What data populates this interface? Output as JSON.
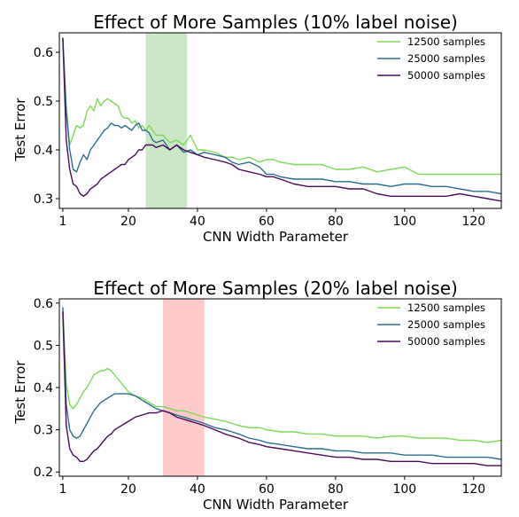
{
  "colors": {
    "s12500": "#7ed957",
    "s25000": "#2b6f8e",
    "s50000": "#4a0d5c",
    "band1": "#a9d9a0",
    "band2": "#ffb3b3"
  },
  "chart_data": [
    {
      "type": "line",
      "title": "Effect of More Samples (10% label noise)",
      "xlabel": "CNN Width Parameter",
      "ylabel": "Test Error",
      "xlim": [
        0,
        128
      ],
      "ylim": [
        0.28,
        0.64
      ],
      "xticks": [
        {
          "v": 1,
          "label": "1"
        },
        {
          "v": 20,
          "label": "20"
        },
        {
          "v": 40,
          "label": "40"
        },
        {
          "v": 60,
          "label": "60"
        },
        {
          "v": 80,
          "label": "80"
        },
        {
          "v": 100,
          "label": "100"
        },
        {
          "v": 120,
          "label": "120"
        }
      ],
      "yticks": [
        {
          "v": 0.3,
          "label": "0.3"
        },
        {
          "v": 0.4,
          "label": "0.4"
        },
        {
          "v": 0.5,
          "label": "0.5"
        },
        {
          "v": 0.6,
          "label": "0.6"
        }
      ],
      "shaded_region": [
        25,
        37
      ],
      "legend_position": "top-right",
      "series": [
        {
          "name": "12500 samples",
          "color_key": "s12500",
          "x": [
            1,
            2,
            3,
            4,
            5,
            6,
            7,
            8,
            9,
            10,
            11,
            12,
            13,
            14,
            15,
            16,
            17,
            18,
            19,
            20,
            21,
            22,
            23,
            24,
            25,
            26,
            27,
            28,
            30,
            32,
            34,
            36,
            38,
            40,
            42,
            45,
            48,
            50,
            52,
            55,
            58,
            60,
            62,
            64,
            68,
            72,
            76,
            80,
            84,
            88,
            92,
            96,
            100,
            104,
            108,
            112,
            116,
            120,
            124,
            128
          ],
          "y": [
            0.63,
            0.49,
            0.41,
            0.43,
            0.45,
            0.445,
            0.45,
            0.48,
            0.49,
            0.48,
            0.505,
            0.49,
            0.5,
            0.505,
            0.5,
            0.495,
            0.49,
            0.47,
            0.465,
            0.465,
            0.455,
            0.46,
            0.445,
            0.45,
            0.44,
            0.45,
            0.44,
            0.43,
            0.43,
            0.415,
            0.42,
            0.41,
            0.43,
            0.4,
            0.4,
            0.395,
            0.385,
            0.385,
            0.38,
            0.385,
            0.375,
            0.38,
            0.38,
            0.375,
            0.37,
            0.37,
            0.37,
            0.36,
            0.36,
            0.365,
            0.355,
            0.36,
            0.365,
            0.35,
            0.35,
            0.35,
            0.35,
            0.35,
            0.35,
            0.35
          ]
        },
        {
          "name": "25000 samples",
          "color_key": "s25000",
          "x": [
            1,
            2,
            3,
            4,
            5,
            6,
            7,
            8,
            9,
            10,
            11,
            12,
            13,
            14,
            15,
            16,
            17,
            18,
            19,
            20,
            21,
            22,
            23,
            24,
            25,
            26,
            27,
            28,
            30,
            32,
            34,
            36,
            38,
            40,
            42,
            45,
            48,
            50,
            52,
            55,
            58,
            60,
            62,
            64,
            68,
            72,
            76,
            80,
            84,
            88,
            92,
            96,
            100,
            104,
            108,
            112,
            116,
            120,
            124,
            128
          ],
          "y": [
            0.63,
            0.48,
            0.4,
            0.36,
            0.355,
            0.375,
            0.39,
            0.38,
            0.4,
            0.41,
            0.42,
            0.43,
            0.44,
            0.445,
            0.455,
            0.45,
            0.45,
            0.445,
            0.45,
            0.445,
            0.44,
            0.45,
            0.455,
            0.44,
            0.44,
            0.435,
            0.42,
            0.415,
            0.42,
            0.4,
            0.41,
            0.395,
            0.4,
            0.39,
            0.395,
            0.39,
            0.385,
            0.375,
            0.37,
            0.375,
            0.365,
            0.35,
            0.35,
            0.345,
            0.34,
            0.34,
            0.34,
            0.335,
            0.335,
            0.33,
            0.33,
            0.325,
            0.33,
            0.33,
            0.325,
            0.325,
            0.32,
            0.315,
            0.315,
            0.31
          ]
        },
        {
          "name": "50000 samples",
          "color_key": "s50000",
          "x": [
            1,
            2,
            3,
            4,
            5,
            6,
            7,
            8,
            9,
            10,
            11,
            12,
            13,
            14,
            15,
            16,
            17,
            18,
            19,
            20,
            21,
            22,
            23,
            24,
            25,
            26,
            27,
            28,
            30,
            32,
            34,
            36,
            38,
            40,
            42,
            45,
            48,
            50,
            52,
            55,
            58,
            60,
            62,
            64,
            68,
            72,
            76,
            80,
            84,
            88,
            92,
            96,
            100,
            104,
            108,
            112,
            116,
            120,
            124,
            128
          ],
          "y": [
            0.63,
            0.42,
            0.36,
            0.33,
            0.325,
            0.31,
            0.305,
            0.31,
            0.32,
            0.325,
            0.33,
            0.34,
            0.345,
            0.35,
            0.355,
            0.36,
            0.365,
            0.37,
            0.37,
            0.38,
            0.385,
            0.39,
            0.4,
            0.4,
            0.41,
            0.41,
            0.41,
            0.405,
            0.41,
            0.4,
            0.41,
            0.4,
            0.395,
            0.39,
            0.385,
            0.38,
            0.375,
            0.37,
            0.36,
            0.355,
            0.35,
            0.345,
            0.345,
            0.34,
            0.33,
            0.325,
            0.325,
            0.325,
            0.32,
            0.32,
            0.31,
            0.305,
            0.305,
            0.305,
            0.305,
            0.305,
            0.31,
            0.305,
            0.3,
            0.295
          ]
        }
      ]
    },
    {
      "type": "line",
      "title": "Effect of More Samples (20% label noise)",
      "xlabel": "CNN Width Parameter",
      "ylabel": "Test Error",
      "xlim": [
        0,
        128
      ],
      "ylim": [
        0.19,
        0.61
      ],
      "xticks": [
        {
          "v": 1,
          "label": "1"
        },
        {
          "v": 20,
          "label": "20"
        },
        {
          "v": 40,
          "label": "40"
        },
        {
          "v": 60,
          "label": "60"
        },
        {
          "v": 80,
          "label": "80"
        },
        {
          "v": 100,
          "label": "100"
        },
        {
          "v": 120,
          "label": "120"
        }
      ],
      "yticks": [
        {
          "v": 0.2,
          "label": "0.2"
        },
        {
          "v": 0.3,
          "label": "0.3"
        },
        {
          "v": 0.4,
          "label": "0.4"
        },
        {
          "v": 0.5,
          "label": "0.5"
        },
        {
          "v": 0.6,
          "label": "0.6"
        }
      ],
      "shaded_region": [
        30,
        42
      ],
      "legend_position": "top-right",
      "series": [
        {
          "name": "12500 samples",
          "color_key": "s12500",
          "x": [
            1,
            2,
            3,
            4,
            5,
            6,
            7,
            8,
            9,
            10,
            11,
            12,
            13,
            14,
            15,
            16,
            17,
            18,
            19,
            20,
            22,
            24,
            26,
            28,
            30,
            32,
            34,
            36,
            38,
            40,
            42,
            45,
            48,
            50,
            52,
            55,
            58,
            60,
            64,
            68,
            72,
            76,
            80,
            84,
            88,
            92,
            96,
            100,
            104,
            108,
            112,
            116,
            120,
            124,
            128
          ],
          "y": [
            0.59,
            0.41,
            0.36,
            0.35,
            0.36,
            0.375,
            0.39,
            0.4,
            0.415,
            0.43,
            0.435,
            0.44,
            0.44,
            0.445,
            0.44,
            0.43,
            0.42,
            0.41,
            0.4,
            0.39,
            0.38,
            0.375,
            0.365,
            0.355,
            0.355,
            0.35,
            0.345,
            0.345,
            0.34,
            0.335,
            0.33,
            0.325,
            0.32,
            0.315,
            0.31,
            0.305,
            0.305,
            0.3,
            0.295,
            0.295,
            0.29,
            0.29,
            0.285,
            0.285,
            0.285,
            0.28,
            0.285,
            0.285,
            0.28,
            0.28,
            0.28,
            0.275,
            0.275,
            0.27,
            0.275
          ]
        },
        {
          "name": "25000 samples",
          "color_key": "s25000",
          "x": [
            1,
            2,
            3,
            4,
            5,
            6,
            7,
            8,
            9,
            10,
            11,
            12,
            13,
            14,
            15,
            16,
            17,
            18,
            19,
            20,
            22,
            24,
            26,
            28,
            30,
            32,
            34,
            36,
            38,
            40,
            42,
            45,
            48,
            50,
            52,
            55,
            58,
            60,
            64,
            68,
            72,
            76,
            80,
            84,
            88,
            92,
            96,
            100,
            104,
            108,
            112,
            116,
            120,
            124,
            128
          ],
          "y": [
            0.59,
            0.36,
            0.3,
            0.285,
            0.28,
            0.285,
            0.3,
            0.315,
            0.33,
            0.345,
            0.355,
            0.365,
            0.37,
            0.375,
            0.38,
            0.385,
            0.385,
            0.385,
            0.385,
            0.385,
            0.38,
            0.37,
            0.36,
            0.35,
            0.345,
            0.34,
            0.335,
            0.33,
            0.325,
            0.32,
            0.315,
            0.305,
            0.3,
            0.295,
            0.29,
            0.28,
            0.275,
            0.27,
            0.265,
            0.26,
            0.255,
            0.255,
            0.25,
            0.25,
            0.245,
            0.245,
            0.245,
            0.24,
            0.24,
            0.24,
            0.235,
            0.235,
            0.235,
            0.235,
            0.23
          ]
        },
        {
          "name": "50000 samples",
          "color_key": "s50000",
          "x": [
            1,
            2,
            3,
            4,
            5,
            6,
            7,
            8,
            9,
            10,
            11,
            12,
            13,
            14,
            15,
            16,
            17,
            18,
            19,
            20,
            22,
            24,
            26,
            28,
            30,
            32,
            34,
            36,
            38,
            40,
            42,
            45,
            48,
            50,
            52,
            55,
            58,
            60,
            64,
            68,
            72,
            76,
            80,
            84,
            88,
            92,
            96,
            100,
            104,
            108,
            112,
            116,
            120,
            124,
            128
          ],
          "y": [
            0.58,
            0.31,
            0.255,
            0.24,
            0.235,
            0.225,
            0.225,
            0.23,
            0.24,
            0.25,
            0.255,
            0.265,
            0.275,
            0.285,
            0.29,
            0.3,
            0.305,
            0.31,
            0.315,
            0.32,
            0.33,
            0.335,
            0.34,
            0.34,
            0.345,
            0.34,
            0.33,
            0.325,
            0.32,
            0.315,
            0.31,
            0.3,
            0.29,
            0.285,
            0.28,
            0.27,
            0.265,
            0.26,
            0.255,
            0.25,
            0.245,
            0.24,
            0.235,
            0.235,
            0.23,
            0.23,
            0.225,
            0.225,
            0.225,
            0.22,
            0.22,
            0.22,
            0.22,
            0.215,
            0.215
          ]
        }
      ]
    }
  ]
}
